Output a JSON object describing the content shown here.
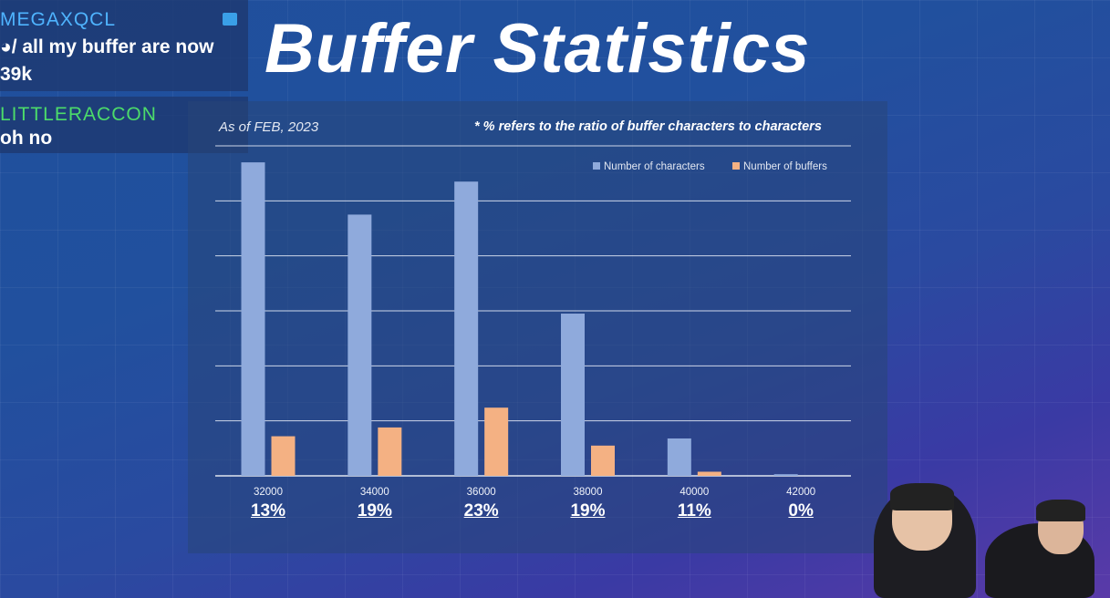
{
  "title": "Buffer Statistics",
  "as_of": "As of FEB, 2023",
  "note": "* % refers to the ratio of buffer characters to characters",
  "chat": [
    {
      "user": "MEGAXQCL",
      "user_color": "#4fb4ff",
      "text_line1": "/ all my buffer are now",
      "text_line2": "39k"
    },
    {
      "user": "LITTLERACCON",
      "user_color": "#4cdc6a",
      "text_line1": "oh no",
      "text_line2": ""
    }
  ],
  "chart_data": {
    "type": "bar",
    "categories": [
      "32000",
      "34000",
      "36000",
      "38000",
      "40000",
      "42000"
    ],
    "percent_labels": [
      "13%",
      "19%",
      "23%",
      "19%",
      "11%",
      "0%"
    ],
    "series": [
      {
        "name": "Number of characters",
        "color": "#8faadc",
        "values": [
          57,
          47.5,
          53.5,
          29.5,
          6.8,
          0.3
        ]
      },
      {
        "name": "Number of buffers",
        "color": "#f4b183",
        "values": [
          7.2,
          8.8,
          12.4,
          5.5,
          0.75,
          0
        ]
      }
    ],
    "ylim": [
      0,
      60
    ],
    "grid": true,
    "legend_position": "top-right"
  }
}
